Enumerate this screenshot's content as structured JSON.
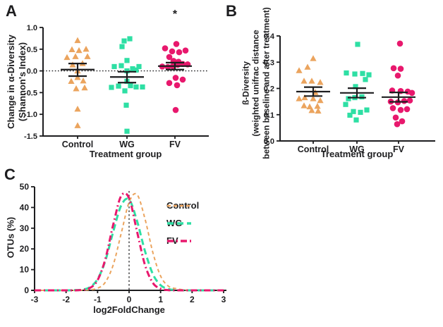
{
  "panels": {
    "a": {
      "letter": "A",
      "significance": "*",
      "ylabel_line1": "Change in α-Diversity",
      "ylabel_line2": "(Shannon's Index)",
      "xlabel": "Treatment group"
    },
    "b": {
      "letter": "B",
      "ylabel_line1": "ß-Diversity",
      "ylabel_line2": "(weighted unifrac distance",
      "ylabel_line3": "between baseline and after treatment)",
      "xlabel": "Treatment group"
    },
    "c": {
      "letter": "C",
      "ylabel": "OTUs (%)",
      "xlabel": "log2FoldChange",
      "legend_labels": [
        "Control",
        "WG",
        "FV"
      ]
    }
  },
  "colors": {
    "control": "#EBA45E",
    "wg": "#2EDFA4",
    "fv": "#E8186D",
    "axis": "#1d1d1f"
  },
  "chart_data": [
    {
      "id": "A",
      "type": "scatter",
      "title": "",
      "ylabel": "Change in α-Diversity (Shannon's Index)",
      "xlabel": "Treatment group",
      "ylim": [
        -1.5,
        1.0
      ],
      "ytick_vals": [
        1.0,
        0.5,
        0.0,
        -0.5,
        -1.0,
        -1.5
      ],
      "ytick_labels": [
        "1.0",
        "0.5",
        "0.0",
        "-0.5",
        "-1.0",
        "-1.5"
      ],
      "zero_line": 0.0,
      "significance": {
        "group": "FV",
        "symbol": "*"
      },
      "groups": [
        {
          "name": "Control",
          "marker": "triangle",
          "color": "#EBA45E",
          "values": [
            0.7,
            0.49,
            0.47,
            0.5,
            0.31,
            0.33,
            0.33,
            0.14,
            0.17,
            0.0,
            -0.15,
            -0.24,
            -0.23,
            -0.41,
            -0.39,
            -0.88,
            -1.26
          ],
          "jitter": [
            0,
            -8,
            2,
            12,
            -15,
            -3,
            14,
            -7,
            7,
            0,
            0,
            -9,
            8,
            -2,
            10,
            0,
            0
          ],
          "mean": 0.03,
          "err_lo": -0.12,
          "err_hi": 0.17
        },
        {
          "name": "WG",
          "marker": "square",
          "color": "#2EDFA4",
          "values": [
            0.74,
            0.69,
            0.56,
            0.24,
            0.12,
            0.1,
            0.1,
            0.05,
            0.02,
            0.0,
            -0.24,
            -0.34,
            -0.35,
            -0.37,
            -0.37,
            -0.38,
            -0.46,
            -0.79,
            -1.39
          ],
          "jitter": [
            4,
            -4,
            -7,
            0,
            -8,
            -18,
            17,
            8,
            13,
            0,
            0,
            5,
            -12,
            13,
            22,
            -22,
            -3,
            -1,
            0
          ],
          "mean": -0.14,
          "err_lo": -0.27,
          "err_hi": -0.02
        },
        {
          "name": "FV",
          "marker": "circle",
          "color": "#E8186D",
          "values": [
            0.62,
            0.52,
            0.47,
            0.45,
            0.43,
            0.32,
            0.23,
            0.21,
            0.16,
            0.15,
            0.14,
            0.11,
            0.1,
            0.09,
            -0.16,
            -0.2,
            -0.28,
            -0.33,
            -0.9
          ],
          "jitter": [
            2,
            -14,
            15,
            -4,
            6,
            -8,
            -2,
            5,
            11,
            18,
            4,
            -3,
            -18,
            -10,
            1,
            11,
            -8,
            3,
            1
          ],
          "mean": 0.11,
          "err_lo": 0.03,
          "err_hi": 0.19
        }
      ]
    },
    {
      "id": "B",
      "type": "scatter",
      "title": "",
      "ylabel": "ß-Diversity (weighted unifrac distance between baseline and after treatment)",
      "xlabel": "Treatment group",
      "ylim": [
        0.0,
        0.4
      ],
      "ytick_vals": [
        0.4,
        0.3,
        0.2,
        0.1,
        0.0
      ],
      "ytick_labels": [
        "0.4",
        "0.3",
        "0.2",
        "0.1",
        "0.0"
      ],
      "groups": [
        {
          "name": "Control",
          "marker": "triangle",
          "color": "#EBA45E",
          "values": [
            0.314,
            0.281,
            0.268,
            0.228,
            0.228,
            0.223,
            0.185,
            0.165,
            0.161,
            0.161,
            0.154,
            0.134,
            0.132,
            0.13,
            0.116,
            0.114
          ],
          "jitter": [
            0,
            -8,
            -20,
            -13,
            -2,
            10,
            3,
            -12,
            -20,
            0,
            10,
            -13,
            6,
            -5,
            -2,
            7
          ],
          "mean": 0.188,
          "err_lo": 0.171,
          "err_hi": 0.205
        },
        {
          "name": "WG",
          "marker": "square",
          "color": "#2EDFA4",
          "values": [
            0.368,
            0.259,
            0.257,
            0.255,
            0.252,
            0.234,
            0.207,
            0.168,
            0.165,
            0.161,
            0.139,
            0.118,
            0.112,
            0.109,
            0.098,
            0.08
          ],
          "jitter": [
            1,
            -15,
            8,
            -3,
            17,
            12,
            -2,
            7,
            -3,
            -12,
            -16,
            14,
            -5,
            5,
            -10,
            -1
          ],
          "mean": 0.183,
          "err_lo": 0.165,
          "err_hi": 0.201
        },
        {
          "name": "FV",
          "marker": "circle",
          "color": "#E8186D",
          "values": [
            0.371,
            0.277,
            0.275,
            0.249,
            0.192,
            0.19,
            0.188,
            0.183,
            0.154,
            0.152,
            0.15,
            0.147,
            0.125,
            0.121,
            0.118,
            0.089,
            0.075,
            0.064
          ],
          "jitter": [
            2,
            -7,
            3,
            -1,
            -9,
            3,
            13,
            19,
            16,
            8,
            -11,
            -1,
            -8,
            12,
            3,
            -4,
            5,
            -2
          ],
          "mean": 0.167,
          "err_lo": 0.149,
          "err_hi": 0.185
        }
      ]
    },
    {
      "id": "C",
      "type": "line",
      "title": "",
      "xlabel": "log2FoldChange",
      "ylabel": "OTUs (%)",
      "xlim": [
        -3,
        3
      ],
      "ylim": [
        0,
        50
      ],
      "xtick_vals": [
        -3,
        -2,
        -1,
        0,
        1,
        2,
        3
      ],
      "xtick_labels": [
        "-3",
        "-2",
        "-1",
        "0",
        "1",
        "2",
        "3"
      ],
      "ytick_vals": [
        0,
        10,
        20,
        30,
        40,
        50
      ],
      "ytick_labels": [
        "0",
        "10",
        "20",
        "30",
        "40",
        "50"
      ],
      "vline_x": 0,
      "legend_position": "right",
      "x": [
        -3,
        -2.75,
        -2.5,
        -2.25,
        -2,
        -1.75,
        -1.5,
        -1.25,
        -1,
        -0.75,
        -0.5,
        -0.25,
        0,
        0.25,
        0.5,
        0.75,
        1,
        1.25,
        1.5,
        1.75,
        2,
        2.25,
        2.5,
        2.75,
        3
      ],
      "series": [
        {
          "name": "Control",
          "color": "#EBA45E",
          "dash": "5,4",
          "width": 2,
          "values": [
            0,
            0,
            0,
            0,
            0,
            0,
            0.1,
            0.3,
            1.0,
            4.0,
            12.5,
            27.5,
            42.5,
            46.3,
            34.8,
            18.5,
            6.9,
            2.0,
            0.8,
            0.2,
            0,
            0,
            0,
            0,
            0
          ]
        },
        {
          "name": "WG",
          "color": "#2EDFA4",
          "dash": "9,5",
          "width": 3,
          "values": [
            0,
            0,
            0,
            0,
            0,
            0.1,
            0.3,
            1.5,
            5.4,
            14.5,
            28.5,
            41.0,
            43.8,
            33.6,
            19.2,
            8.0,
            2.5,
            0.6,
            0.1,
            0,
            0,
            0,
            0,
            0,
            0
          ]
        },
        {
          "name": "FV",
          "color": "#E8186D",
          "dash": "9,4,2,4",
          "width": 3,
          "values": [
            0,
            0,
            0,
            0,
            0,
            0,
            0.2,
            1.1,
            4.9,
            15.3,
            32.0,
            45.6,
            44.5,
            28.5,
            12.5,
            3.7,
            0.8,
            0.1,
            0,
            0,
            0,
            0,
            0,
            0,
            0
          ]
        }
      ]
    }
  ]
}
